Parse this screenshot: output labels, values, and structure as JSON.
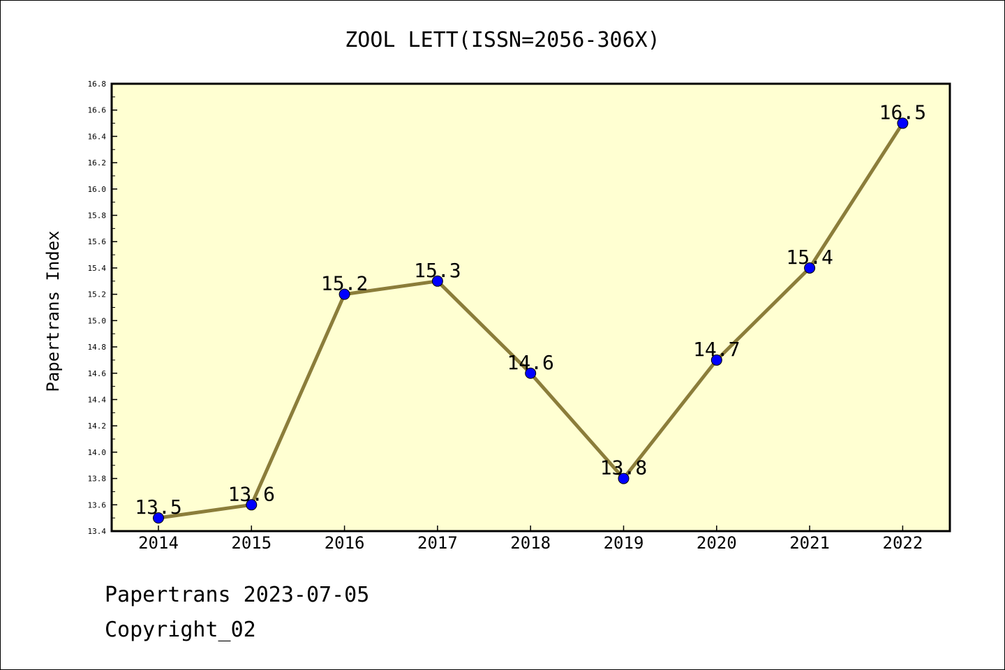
{
  "chart_data": {
    "type": "line",
    "title": "ZOOL LETT(ISSN=2056-306X)",
    "xlabel": "",
    "ylabel": "Papertrans Index",
    "categories": [
      "2014",
      "2015",
      "2016",
      "2017",
      "2018",
      "2019",
      "2020",
      "2021",
      "2022"
    ],
    "series": [
      {
        "values": [
          13.5,
          13.6,
          15.2,
          15.3,
          14.6,
          13.8,
          14.7,
          15.4,
          16.5
        ]
      }
    ],
    "data_labels": [
      "13.5",
      "13.6",
      "15.2",
      "15.3",
      "14.6",
      "13.8",
      "14.7",
      "15.4",
      "16.5"
    ],
    "ylim": [
      13.4,
      16.8
    ],
    "yticks": [
      "13.4",
      "13.6",
      "13.8",
      "14.0",
      "14.2",
      "14.4",
      "14.6",
      "14.8",
      "15.0",
      "15.2",
      "15.4",
      "15.6",
      "15.8",
      "16.0",
      "16.2",
      "16.4",
      "16.6",
      "16.8"
    ],
    "grid": false,
    "colors": {
      "plot_background": "#FFFFD2",
      "line": "#8B7D3A",
      "marker": "#0000FF"
    }
  },
  "footer": {
    "date_text": "Papertrans 2023-07-05",
    "copyright_text": "Copyright_02"
  }
}
